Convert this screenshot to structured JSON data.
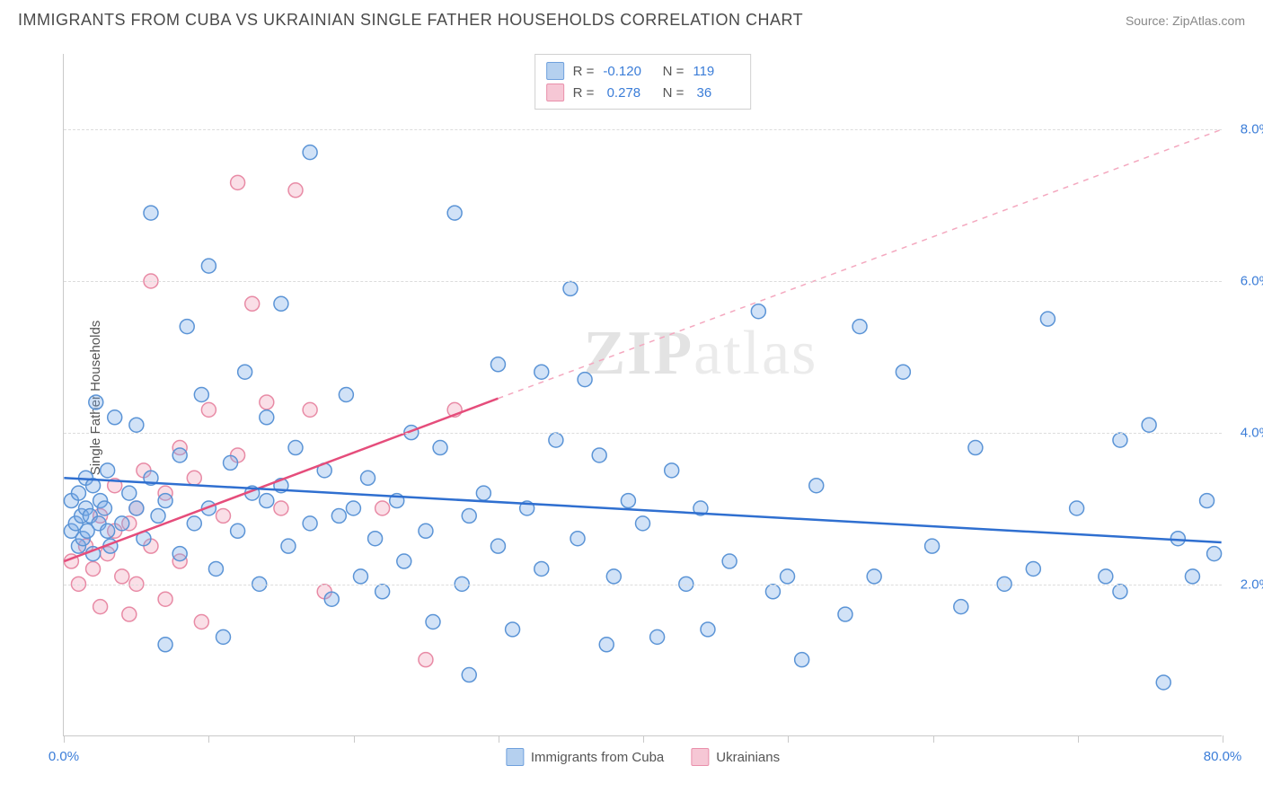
{
  "title": "IMMIGRANTS FROM CUBA VS UKRAINIAN SINGLE FATHER HOUSEHOLDS CORRELATION CHART",
  "source": "Source: ZipAtlas.com",
  "chart": {
    "type": "scatter",
    "ylabel": "Single Father Households",
    "xlim": [
      0,
      80
    ],
    "ylim": [
      0,
      9
    ],
    "yticks": [
      2.0,
      4.0,
      6.0,
      8.0
    ],
    "ytick_labels": [
      "2.0%",
      "4.0%",
      "6.0%",
      "8.0%"
    ],
    "xtick_positions": [
      0,
      10,
      20,
      30,
      40,
      50,
      60,
      70,
      80
    ],
    "xtick_label_left": "0.0%",
    "xtick_label_right": "80.0%",
    "background_color": "#ffffff",
    "grid_color": "#dcdcdc",
    "axis_color": "#c9c9c9",
    "marker_radius": 8,
    "marker_stroke_width": 1.5,
    "series": {
      "cuba": {
        "label": "Immigrants from Cuba",
        "color_fill": "rgba(124,172,232,0.35)",
        "color_stroke": "#5b94d6",
        "swatch_fill": "#b5d0ef",
        "swatch_border": "#6fa0dd",
        "R": "-0.120",
        "N": "119",
        "trend": {
          "x1": 0,
          "y1": 3.4,
          "x2": 80,
          "y2": 2.55,
          "color": "#2f6fd0",
          "width": 2.5,
          "dash": "none"
        },
        "points": [
          [
            0.5,
            2.7
          ],
          [
            0.5,
            3.1
          ],
          [
            0.8,
            2.8
          ],
          [
            1.0,
            2.5
          ],
          [
            1.0,
            3.2
          ],
          [
            1.2,
            2.9
          ],
          [
            1.3,
            2.6
          ],
          [
            1.5,
            3.0
          ],
          [
            1.5,
            3.4
          ],
          [
            1.6,
            2.7
          ],
          [
            1.8,
            2.9
          ],
          [
            2.0,
            2.4
          ],
          [
            2.0,
            3.3
          ],
          [
            2.2,
            4.4
          ],
          [
            2.4,
            2.8
          ],
          [
            2.5,
            3.1
          ],
          [
            2.8,
            3.0
          ],
          [
            3.0,
            2.7
          ],
          [
            3.0,
            3.5
          ],
          [
            3.2,
            2.5
          ],
          [
            3.5,
            4.2
          ],
          [
            4.0,
            2.8
          ],
          [
            4.5,
            3.2
          ],
          [
            5.0,
            3.0
          ],
          [
            5.0,
            4.1
          ],
          [
            5.5,
            2.6
          ],
          [
            6.0,
            3.4
          ],
          [
            6.0,
            6.9
          ],
          [
            6.5,
            2.9
          ],
          [
            7.0,
            3.1
          ],
          [
            7.0,
            1.2
          ],
          [
            8.0,
            2.4
          ],
          [
            8.0,
            3.7
          ],
          [
            8.5,
            5.4
          ],
          [
            9.0,
            2.8
          ],
          [
            9.5,
            4.5
          ],
          [
            10.0,
            3.0
          ],
          [
            10.0,
            6.2
          ],
          [
            10.5,
            2.2
          ],
          [
            11.0,
            1.3
          ],
          [
            11.5,
            3.6
          ],
          [
            12.0,
            2.7
          ],
          [
            12.5,
            4.8
          ],
          [
            13.0,
            3.2
          ],
          [
            13.5,
            2.0
          ],
          [
            14.0,
            3.1
          ],
          [
            14.0,
            4.2
          ],
          [
            15.0,
            3.3
          ],
          [
            15.0,
            5.7
          ],
          [
            15.5,
            2.5
          ],
          [
            16.0,
            3.8
          ],
          [
            17.0,
            7.7
          ],
          [
            17.0,
            2.8
          ],
          [
            18.0,
            3.5
          ],
          [
            18.5,
            1.8
          ],
          [
            19.0,
            2.9
          ],
          [
            19.5,
            4.5
          ],
          [
            20.0,
            3.0
          ],
          [
            20.5,
            2.1
          ],
          [
            21.0,
            3.4
          ],
          [
            21.5,
            2.6
          ],
          [
            22.0,
            1.9
          ],
          [
            23.0,
            3.1
          ],
          [
            23.5,
            2.3
          ],
          [
            24.0,
            4.0
          ],
          [
            25.0,
            2.7
          ],
          [
            25.5,
            1.5
          ],
          [
            26.0,
            3.8
          ],
          [
            27.0,
            6.9
          ],
          [
            27.5,
            2.0
          ],
          [
            28.0,
            2.9
          ],
          [
            28.0,
            0.8
          ],
          [
            29.0,
            3.2
          ],
          [
            30.0,
            2.5
          ],
          [
            30.0,
            4.9
          ],
          [
            31.0,
            1.4
          ],
          [
            32.0,
            3.0
          ],
          [
            33.0,
            2.2
          ],
          [
            33.0,
            4.8
          ],
          [
            34.0,
            3.9
          ],
          [
            35.0,
            5.9
          ],
          [
            35.5,
            2.6
          ],
          [
            36.0,
            4.7
          ],
          [
            37.0,
            3.7
          ],
          [
            37.5,
            1.2
          ],
          [
            38.0,
            2.1
          ],
          [
            39.0,
            3.1
          ],
          [
            40.0,
            2.8
          ],
          [
            41.0,
            1.3
          ],
          [
            42.0,
            3.5
          ],
          [
            43.0,
            2.0
          ],
          [
            44.0,
            3.0
          ],
          [
            44.5,
            1.4
          ],
          [
            46.0,
            2.3
          ],
          [
            48.0,
            5.6
          ],
          [
            49.0,
            1.9
          ],
          [
            50.0,
            2.1
          ],
          [
            51.0,
            1.0
          ],
          [
            52.0,
            3.3
          ],
          [
            54.0,
            1.6
          ],
          [
            55.0,
            5.4
          ],
          [
            56.0,
            2.1
          ],
          [
            58.0,
            4.8
          ],
          [
            60.0,
            2.5
          ],
          [
            62.0,
            1.7
          ],
          [
            63.0,
            3.8
          ],
          [
            65.0,
            2.0
          ],
          [
            67.0,
            2.2
          ],
          [
            68.0,
            5.5
          ],
          [
            70.0,
            3.0
          ],
          [
            72.0,
            2.1
          ],
          [
            73.0,
            1.9
          ],
          [
            73.0,
            3.9
          ],
          [
            75.0,
            4.1
          ],
          [
            76.0,
            0.7
          ],
          [
            77.0,
            2.6
          ],
          [
            78.0,
            2.1
          ],
          [
            79.0,
            3.1
          ],
          [
            79.5,
            2.4
          ]
        ]
      },
      "ukraine": {
        "label": "Ukrainians",
        "color_fill": "rgba(240,150,175,0.30)",
        "color_stroke": "#e88aa5",
        "swatch_fill": "#f6c7d5",
        "swatch_border": "#e98fab",
        "R": "0.278",
        "N": "36",
        "trend_solid": {
          "x1": 0,
          "y1": 2.3,
          "x2": 30,
          "y2": 4.45,
          "color": "#e54d7b",
          "width": 2.5
        },
        "trend_dash": {
          "x1": 30,
          "y1": 4.45,
          "x2": 80,
          "y2": 8.0,
          "color": "#f4a8bf",
          "width": 1.5
        },
        "points": [
          [
            0.5,
            2.3
          ],
          [
            1.0,
            2.0
          ],
          [
            1.5,
            2.5
          ],
          [
            2.0,
            2.2
          ],
          [
            2.5,
            2.9
          ],
          [
            2.5,
            1.7
          ],
          [
            3.0,
            2.4
          ],
          [
            3.5,
            2.7
          ],
          [
            3.5,
            3.3
          ],
          [
            4.0,
            2.1
          ],
          [
            4.5,
            2.8
          ],
          [
            4.5,
            1.6
          ],
          [
            5.0,
            3.0
          ],
          [
            5.0,
            2.0
          ],
          [
            5.5,
            3.5
          ],
          [
            6.0,
            2.5
          ],
          [
            6.0,
            6.0
          ],
          [
            7.0,
            3.2
          ],
          [
            7.0,
            1.8
          ],
          [
            8.0,
            3.8
          ],
          [
            8.0,
            2.3
          ],
          [
            9.0,
            3.4
          ],
          [
            9.5,
            1.5
          ],
          [
            10.0,
            4.3
          ],
          [
            11.0,
            2.9
          ],
          [
            12.0,
            3.7
          ],
          [
            12.0,
            7.3
          ],
          [
            13.0,
            5.7
          ],
          [
            14.0,
            4.4
          ],
          [
            15.0,
            3.0
          ],
          [
            16.0,
            7.2
          ],
          [
            17.0,
            4.3
          ],
          [
            18.0,
            1.9
          ],
          [
            22.0,
            3.0
          ],
          [
            25.0,
            1.0
          ],
          [
            27.0,
            4.3
          ]
        ]
      }
    },
    "watermark": {
      "bold": "ZIP",
      "light": "atlas"
    }
  }
}
